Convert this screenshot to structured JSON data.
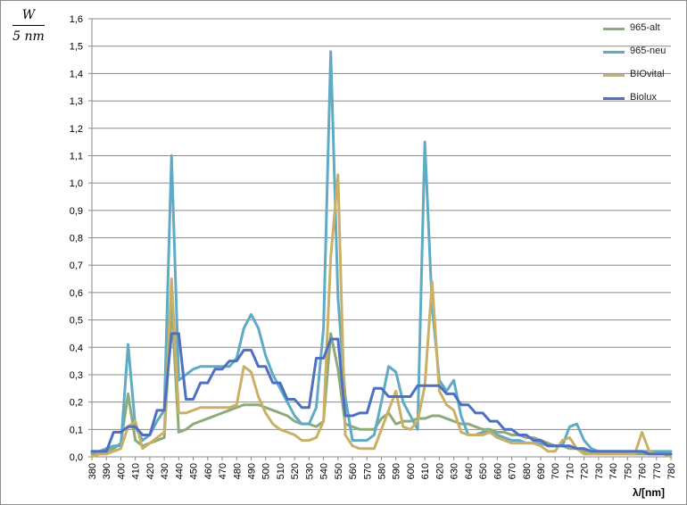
{
  "chart_data": {
    "type": "line",
    "ylabel_numerator": "W",
    "ylabel_denominator": "5 nm",
    "xlabel": "λ/[nm]",
    "ylim": [
      0,
      1.6
    ],
    "xlim": [
      380,
      780
    ],
    "ytick_step": 0.1,
    "grid": true,
    "legend_position": "top-right",
    "x": [
      380,
      385,
      390,
      395,
      400,
      405,
      410,
      415,
      420,
      425,
      430,
      435,
      440,
      445,
      450,
      455,
      460,
      465,
      470,
      475,
      480,
      485,
      490,
      495,
      500,
      505,
      510,
      515,
      520,
      525,
      530,
      535,
      540,
      545,
      550,
      555,
      560,
      565,
      570,
      575,
      580,
      585,
      590,
      595,
      600,
      605,
      610,
      615,
      620,
      625,
      630,
      635,
      640,
      645,
      650,
      655,
      660,
      665,
      670,
      675,
      680,
      685,
      690,
      695,
      700,
      705,
      710,
      715,
      720,
      725,
      730,
      735,
      740,
      745,
      750,
      755,
      760,
      765,
      770,
      775,
      780
    ],
    "ytick_labels": [
      "0,0",
      "0,1",
      "0,2",
      "0,3",
      "0,4",
      "0,5",
      "0,6",
      "0,7",
      "0,8",
      "0,9",
      "1,0",
      "1,1",
      "1,2",
      "1,3",
      "1,4",
      "1,5",
      "1,6"
    ],
    "xtick_labels": [
      "380",
      "390",
      "400",
      "410",
      "420",
      "430",
      "440",
      "450",
      "460",
      "470",
      "480",
      "490",
      "500",
      "510",
      "520",
      "530",
      "540",
      "550",
      "560",
      "570",
      "580",
      "590",
      "600",
      "610",
      "620",
      "630",
      "640",
      "650",
      "660",
      "670",
      "680",
      "690",
      "700",
      "710",
      "720",
      "730",
      "740",
      "750",
      "760",
      "770",
      "780"
    ],
    "series": [
      {
        "name": "965-alt",
        "color": "#8daa7b",
        "values": [
          0.01,
          0.01,
          0.02,
          0.03,
          0.05,
          0.23,
          0.06,
          0.04,
          0.05,
          0.06,
          0.07,
          0.56,
          0.09,
          0.1,
          0.12,
          0.13,
          0.14,
          0.15,
          0.16,
          0.17,
          0.18,
          0.19,
          0.19,
          0.19,
          0.18,
          0.17,
          0.16,
          0.15,
          0.13,
          0.12,
          0.12,
          0.11,
          0.13,
          0.45,
          0.32,
          0.12,
          0.11,
          0.1,
          0.1,
          0.1,
          0.14,
          0.16,
          0.12,
          0.13,
          0.13,
          0.14,
          0.14,
          0.15,
          0.15,
          0.14,
          0.13,
          0.12,
          0.12,
          0.11,
          0.1,
          0.1,
          0.09,
          0.09,
          0.08,
          0.08,
          0.07,
          0.07,
          0.06,
          0.05,
          0.04,
          0.04,
          0.03,
          0.03,
          0.02,
          0.02,
          0.02,
          0.02,
          0.02,
          0.02,
          0.01,
          0.01,
          0.01,
          0.01,
          0.01,
          0.01,
          0.01
        ]
      },
      {
        "name": "965-neu",
        "color": "#5fabc5",
        "values": [
          0.02,
          0.02,
          0.03,
          0.04,
          0.04,
          0.41,
          0.11,
          0.06,
          0.08,
          0.13,
          0.17,
          1.1,
          0.28,
          0.3,
          0.32,
          0.33,
          0.33,
          0.33,
          0.33,
          0.33,
          0.36,
          0.47,
          0.52,
          0.47,
          0.37,
          0.3,
          0.25,
          0.2,
          0.15,
          0.12,
          0.12,
          0.18,
          0.47,
          1.48,
          0.58,
          0.22,
          0.06,
          0.06,
          0.06,
          0.08,
          0.2,
          0.33,
          0.31,
          0.2,
          0.15,
          0.1,
          1.15,
          0.55,
          0.28,
          0.24,
          0.28,
          0.15,
          0.08,
          0.08,
          0.09,
          0.09,
          0.08,
          0.07,
          0.06,
          0.06,
          0.05,
          0.05,
          0.05,
          0.04,
          0.04,
          0.04,
          0.11,
          0.12,
          0.06,
          0.03,
          0.02,
          0.02,
          0.02,
          0.02,
          0.02,
          0.02,
          0.02,
          0.02,
          0.02,
          0.02,
          0.02
        ]
      },
      {
        "name": "BIOvital",
        "color": "#c9b066",
        "values": [
          0.0,
          0.01,
          0.01,
          0.02,
          0.03,
          0.11,
          0.13,
          0.03,
          0.05,
          0.07,
          0.09,
          0.65,
          0.16,
          0.16,
          0.17,
          0.18,
          0.18,
          0.18,
          0.18,
          0.18,
          0.19,
          0.33,
          0.31,
          0.22,
          0.16,
          0.12,
          0.1,
          0.09,
          0.08,
          0.06,
          0.06,
          0.07,
          0.13,
          0.73,
          1.03,
          0.08,
          0.04,
          0.03,
          0.03,
          0.03,
          0.1,
          0.17,
          0.24,
          0.11,
          0.1,
          0.13,
          0.26,
          0.64,
          0.24,
          0.19,
          0.17,
          0.09,
          0.08,
          0.08,
          0.08,
          0.09,
          0.07,
          0.06,
          0.05,
          0.05,
          0.05,
          0.05,
          0.04,
          0.02,
          0.02,
          0.06,
          0.07,
          0.03,
          0.01,
          0.01,
          0.01,
          0.01,
          0.01,
          0.01,
          0.01,
          0.01,
          0.09,
          0.02,
          0.01,
          0.01,
          0.0
        ]
      },
      {
        "name": "Biolux",
        "color": "#4f6fc0",
        "values": [
          0.02,
          0.02,
          0.02,
          0.09,
          0.09,
          0.11,
          0.11,
          0.08,
          0.08,
          0.17,
          0.17,
          0.45,
          0.45,
          0.21,
          0.21,
          0.27,
          0.27,
          0.32,
          0.32,
          0.35,
          0.35,
          0.39,
          0.39,
          0.33,
          0.33,
          0.27,
          0.27,
          0.21,
          0.21,
          0.18,
          0.18,
          0.36,
          0.36,
          0.43,
          0.43,
          0.15,
          0.15,
          0.16,
          0.16,
          0.25,
          0.25,
          0.22,
          0.22,
          0.22,
          0.22,
          0.26,
          0.26,
          0.26,
          0.26,
          0.23,
          0.23,
          0.19,
          0.19,
          0.16,
          0.16,
          0.13,
          0.13,
          0.1,
          0.1,
          0.08,
          0.08,
          0.06,
          0.06,
          0.04,
          0.04,
          0.04,
          0.04,
          0.03,
          0.03,
          0.02,
          0.02,
          0.02,
          0.02,
          0.02,
          0.02,
          0.02,
          0.02,
          0.01,
          0.01,
          0.01,
          0.01
        ]
      }
    ]
  }
}
